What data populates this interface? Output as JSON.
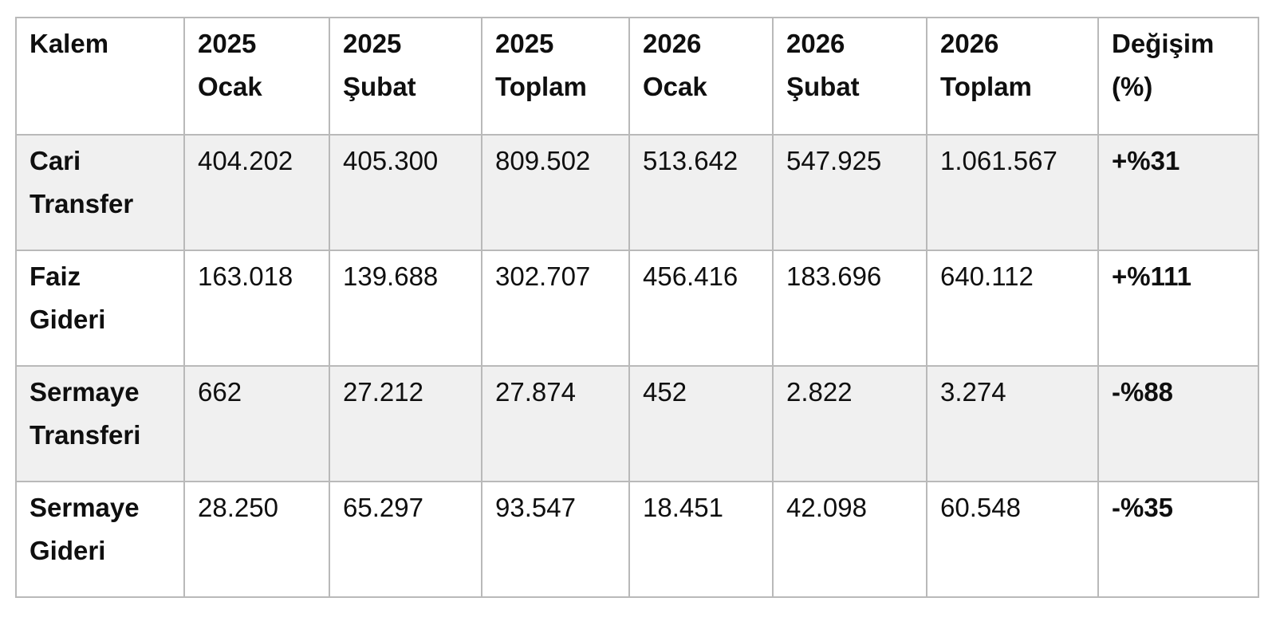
{
  "page": {
    "background_color": "#ffffff",
    "table_border_color": "#b9b9b9",
    "stripe_row_color": "#f0f0f0",
    "text_color": "#0f0f0f"
  },
  "table": {
    "headers": [
      {
        "line1": "Kalem",
        "line2": ""
      },
      {
        "line1": "2025",
        "line2": "Ocak"
      },
      {
        "line1": "2025",
        "line2": "Şubat"
      },
      {
        "line1": "2025",
        "line2": "Toplam"
      },
      {
        "line1": "2026",
        "line2": "Ocak"
      },
      {
        "line1": "2026",
        "line2": "Şubat"
      },
      {
        "line1": "2026",
        "line2": "Toplam"
      },
      {
        "line1": "Değişim",
        "line2": "(%)"
      }
    ],
    "rows": [
      {
        "label_line1": "Cari",
        "label_line2": "Transfer",
        "values": [
          "404.202",
          "405.300",
          "809.502",
          "513.642",
          "547.925",
          "1.061.567"
        ],
        "change": "+%31"
      },
      {
        "label_line1": "Faiz",
        "label_line2": "Gideri",
        "values": [
          "163.018",
          "139.688",
          "302.707",
          "456.416",
          "183.696",
          "640.112"
        ],
        "change": "+%111"
      },
      {
        "label_line1": "Sermaye",
        "label_line2": "Transferi",
        "values": [
          "662",
          "27.212",
          "27.874",
          "452",
          "2.822",
          "3.274"
        ],
        "change": "-%88"
      },
      {
        "label_line1": "Sermaye",
        "label_line2": "Gideri",
        "values": [
          "28.250",
          "65.297",
          "93.547",
          "18.451",
          "42.098",
          "60.548"
        ],
        "change": "-%35"
      }
    ]
  },
  "chart_data": {
    "type": "table",
    "title": "",
    "columns": [
      "Kalem",
      "2025 Ocak",
      "2025 Şubat",
      "2025 Toplam",
      "2026 Ocak",
      "2026 Şubat",
      "2026 Toplam",
      "Değişim (%)"
    ],
    "rows": [
      [
        "Cari Transfer",
        "404.202",
        "405.300",
        "809.502",
        "513.642",
        "547.925",
        "1.061.567",
        "+%31"
      ],
      [
        "Faiz Gideri",
        "163.018",
        "139.688",
        "302.707",
        "456.416",
        "183.696",
        "640.112",
        "+%111"
      ],
      [
        "Sermaye Transferi",
        "662",
        "27.212",
        "27.874",
        "452",
        "2.822",
        "3.274",
        "-%88"
      ],
      [
        "Sermaye Gideri",
        "28.250",
        "65.297",
        "93.547",
        "18.451",
        "42.098",
        "60.548",
        "-%35"
      ]
    ],
    "notes": "Turkish fiscal table comparing Jan/Feb 2025 vs 2026 expense items with percent change; zebra striping on odd data rows; labels, headers and change column in bold."
  }
}
